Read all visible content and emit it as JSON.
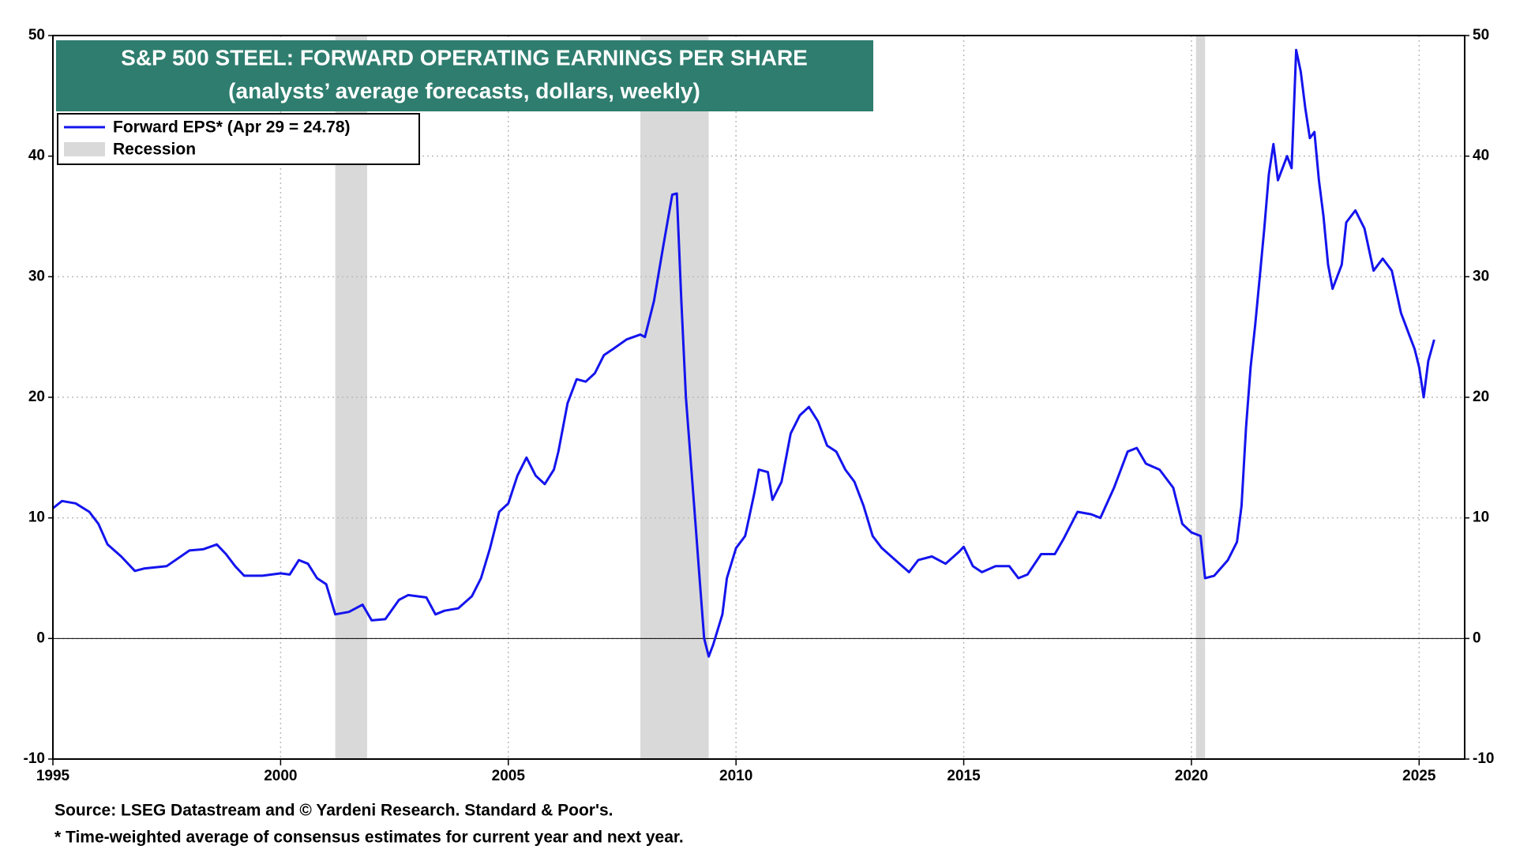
{
  "chart_data": {
    "type": "line",
    "title": "S&P 500 STEEL: FORWARD OPERATING EARNINGS PER SHARE",
    "subtitle": "(analysts’ average forecasts, dollars, weekly)",
    "notes": [
      "Source: LSEG Datastream and © Yardeni Research. Standard & Poor's.",
      "* Time-weighted average of consensus estimates for current year and next year."
    ],
    "x": [
      1995.0,
      1995.2,
      1995.5,
      1995.8,
      1996.0,
      1996.2,
      1996.5,
      1996.8,
      1997.0,
      1997.5,
      1998.0,
      1998.3,
      1998.6,
      1998.8,
      1999.0,
      1999.2,
      1999.6,
      2000.0,
      2000.2,
      2000.4,
      2000.6,
      2000.8,
      2001.0,
      2001.2,
      2001.5,
      2001.8,
      2002.0,
      2002.3,
      2002.6,
      2002.8,
      2003.2,
      2003.4,
      2003.6,
      2003.9,
      2004.2,
      2004.4,
      2004.6,
      2004.8,
      2005.0,
      2005.2,
      2005.4,
      2005.6,
      2005.8,
      2006.0,
      2006.1,
      2006.3,
      2006.5,
      2006.7,
      2006.9,
      2007.1,
      2007.3,
      2007.6,
      2007.9,
      2008.0,
      2008.2,
      2008.4,
      2008.6,
      2008.7,
      2008.8,
      2008.9,
      2009.0,
      2009.1,
      2009.2,
      2009.3,
      2009.4,
      2009.5,
      2009.7,
      2009.8,
      2010.0,
      2010.2,
      2010.4,
      2010.5,
      2010.7,
      2010.8,
      2011.0,
      2011.2,
      2011.4,
      2011.6,
      2011.8,
      2012.0,
      2012.2,
      2012.4,
      2012.6,
      2012.8,
      2013.0,
      2013.2,
      2013.5,
      2013.8,
      2014.0,
      2014.3,
      2014.6,
      2014.9,
      2015.0,
      2015.2,
      2015.4,
      2015.7,
      2016.0,
      2016.2,
      2016.4,
      2016.7,
      2017.0,
      2017.2,
      2017.5,
      2017.8,
      2018.0,
      2018.3,
      2018.6,
      2018.8,
      2019.0,
      2019.3,
      2019.6,
      2019.8,
      2020.0,
      2020.2,
      2020.3,
      2020.5,
      2020.8,
      2021.0,
      2021.1,
      2021.2,
      2021.3,
      2021.4,
      2021.5,
      2021.6,
      2021.7,
      2021.8,
      2021.9,
      2022.1,
      2022.2,
      2022.3,
      2022.4,
      2022.5,
      2022.6,
      2022.7,
      2022.8,
      2022.9,
      2023.0,
      2023.1,
      2023.3,
      2023.4,
      2023.6,
      2023.8,
      2024.0,
      2024.2,
      2024.4,
      2024.6,
      2024.8,
      2024.9,
      2025.0,
      2025.1,
      2025.2,
      2025.33
    ],
    "series": [
      {
        "name": "Forward EPS* (Apr 29 = 24.78)",
        "color": "#1414ee",
        "values": [
          10.8,
          11.4,
          11.2,
          10.5,
          9.5,
          7.8,
          6.8,
          5.6,
          5.8,
          6.0,
          7.3,
          7.4,
          7.8,
          7.0,
          6.0,
          5.2,
          5.2,
          5.4,
          5.3,
          6.5,
          6.2,
          5.0,
          4.5,
          2.0,
          2.2,
          2.8,
          1.5,
          1.6,
          3.2,
          3.6,
          3.4,
          2.0,
          2.3,
          2.5,
          3.5,
          5.0,
          7.5,
          10.5,
          11.2,
          13.5,
          15.0,
          13.5,
          12.8,
          14.0,
          15.5,
          19.5,
          21.5,
          21.3,
          22.0,
          23.5,
          24.0,
          24.8,
          25.2,
          25.0,
          28.0,
          32.5,
          36.8,
          36.9,
          28.0,
          20.0,
          15.0,
          10.0,
          5.0,
          0.0,
          -1.5,
          -0.5,
          2.0,
          5.0,
          7.5,
          8.5,
          12.0,
          14.0,
          13.8,
          11.5,
          13.0,
          17.0,
          18.5,
          19.2,
          18.0,
          16.0,
          15.5,
          14.0,
          13.0,
          11.0,
          8.5,
          7.5,
          6.5,
          5.5,
          6.5,
          6.8,
          6.2,
          7.2,
          7.6,
          6.0,
          5.5,
          6.0,
          6.0,
          5.0,
          5.3,
          7.0,
          7.0,
          8.3,
          10.5,
          10.3,
          10.0,
          12.5,
          15.5,
          15.8,
          14.5,
          14.0,
          12.5,
          9.5,
          8.8,
          8.5,
          5.0,
          5.2,
          6.5,
          8.0,
          11.0,
          17.5,
          22.5,
          26.0,
          30.0,
          34.0,
          38.5,
          41.0,
          38.0,
          40.0,
          39.0,
          48.8,
          47.0,
          44.0,
          41.5,
          42.0,
          38.0,
          35.0,
          31.0,
          29.0,
          31.0,
          34.5,
          35.5,
          34.0,
          30.5,
          31.5,
          30.5,
          27.0,
          25.0,
          24.0,
          22.5,
          20.0,
          23.0,
          24.78
        ]
      }
    ],
    "recessions": [
      {
        "start": 2001.2,
        "end": 2001.9
      },
      {
        "start": 2007.9,
        "end": 2009.4
      },
      {
        "start": 2020.1,
        "end": 2020.3
      }
    ],
    "recession_label": "Recession",
    "recession_color": "#d9d9d9",
    "xlim": [
      1995,
      2026
    ],
    "xticks": [
      1995,
      2000,
      2005,
      2010,
      2015,
      2020,
      2025
    ],
    "ylim": [
      -10,
      50
    ],
    "yticks": [
      -10,
      0,
      10,
      20,
      30,
      40,
      50
    ],
    "y2lim": [
      -10,
      50
    ],
    "y2ticks": [
      -10,
      0,
      10,
      20,
      30,
      40,
      50
    ],
    "grid": true,
    "legend": "upper left"
  }
}
